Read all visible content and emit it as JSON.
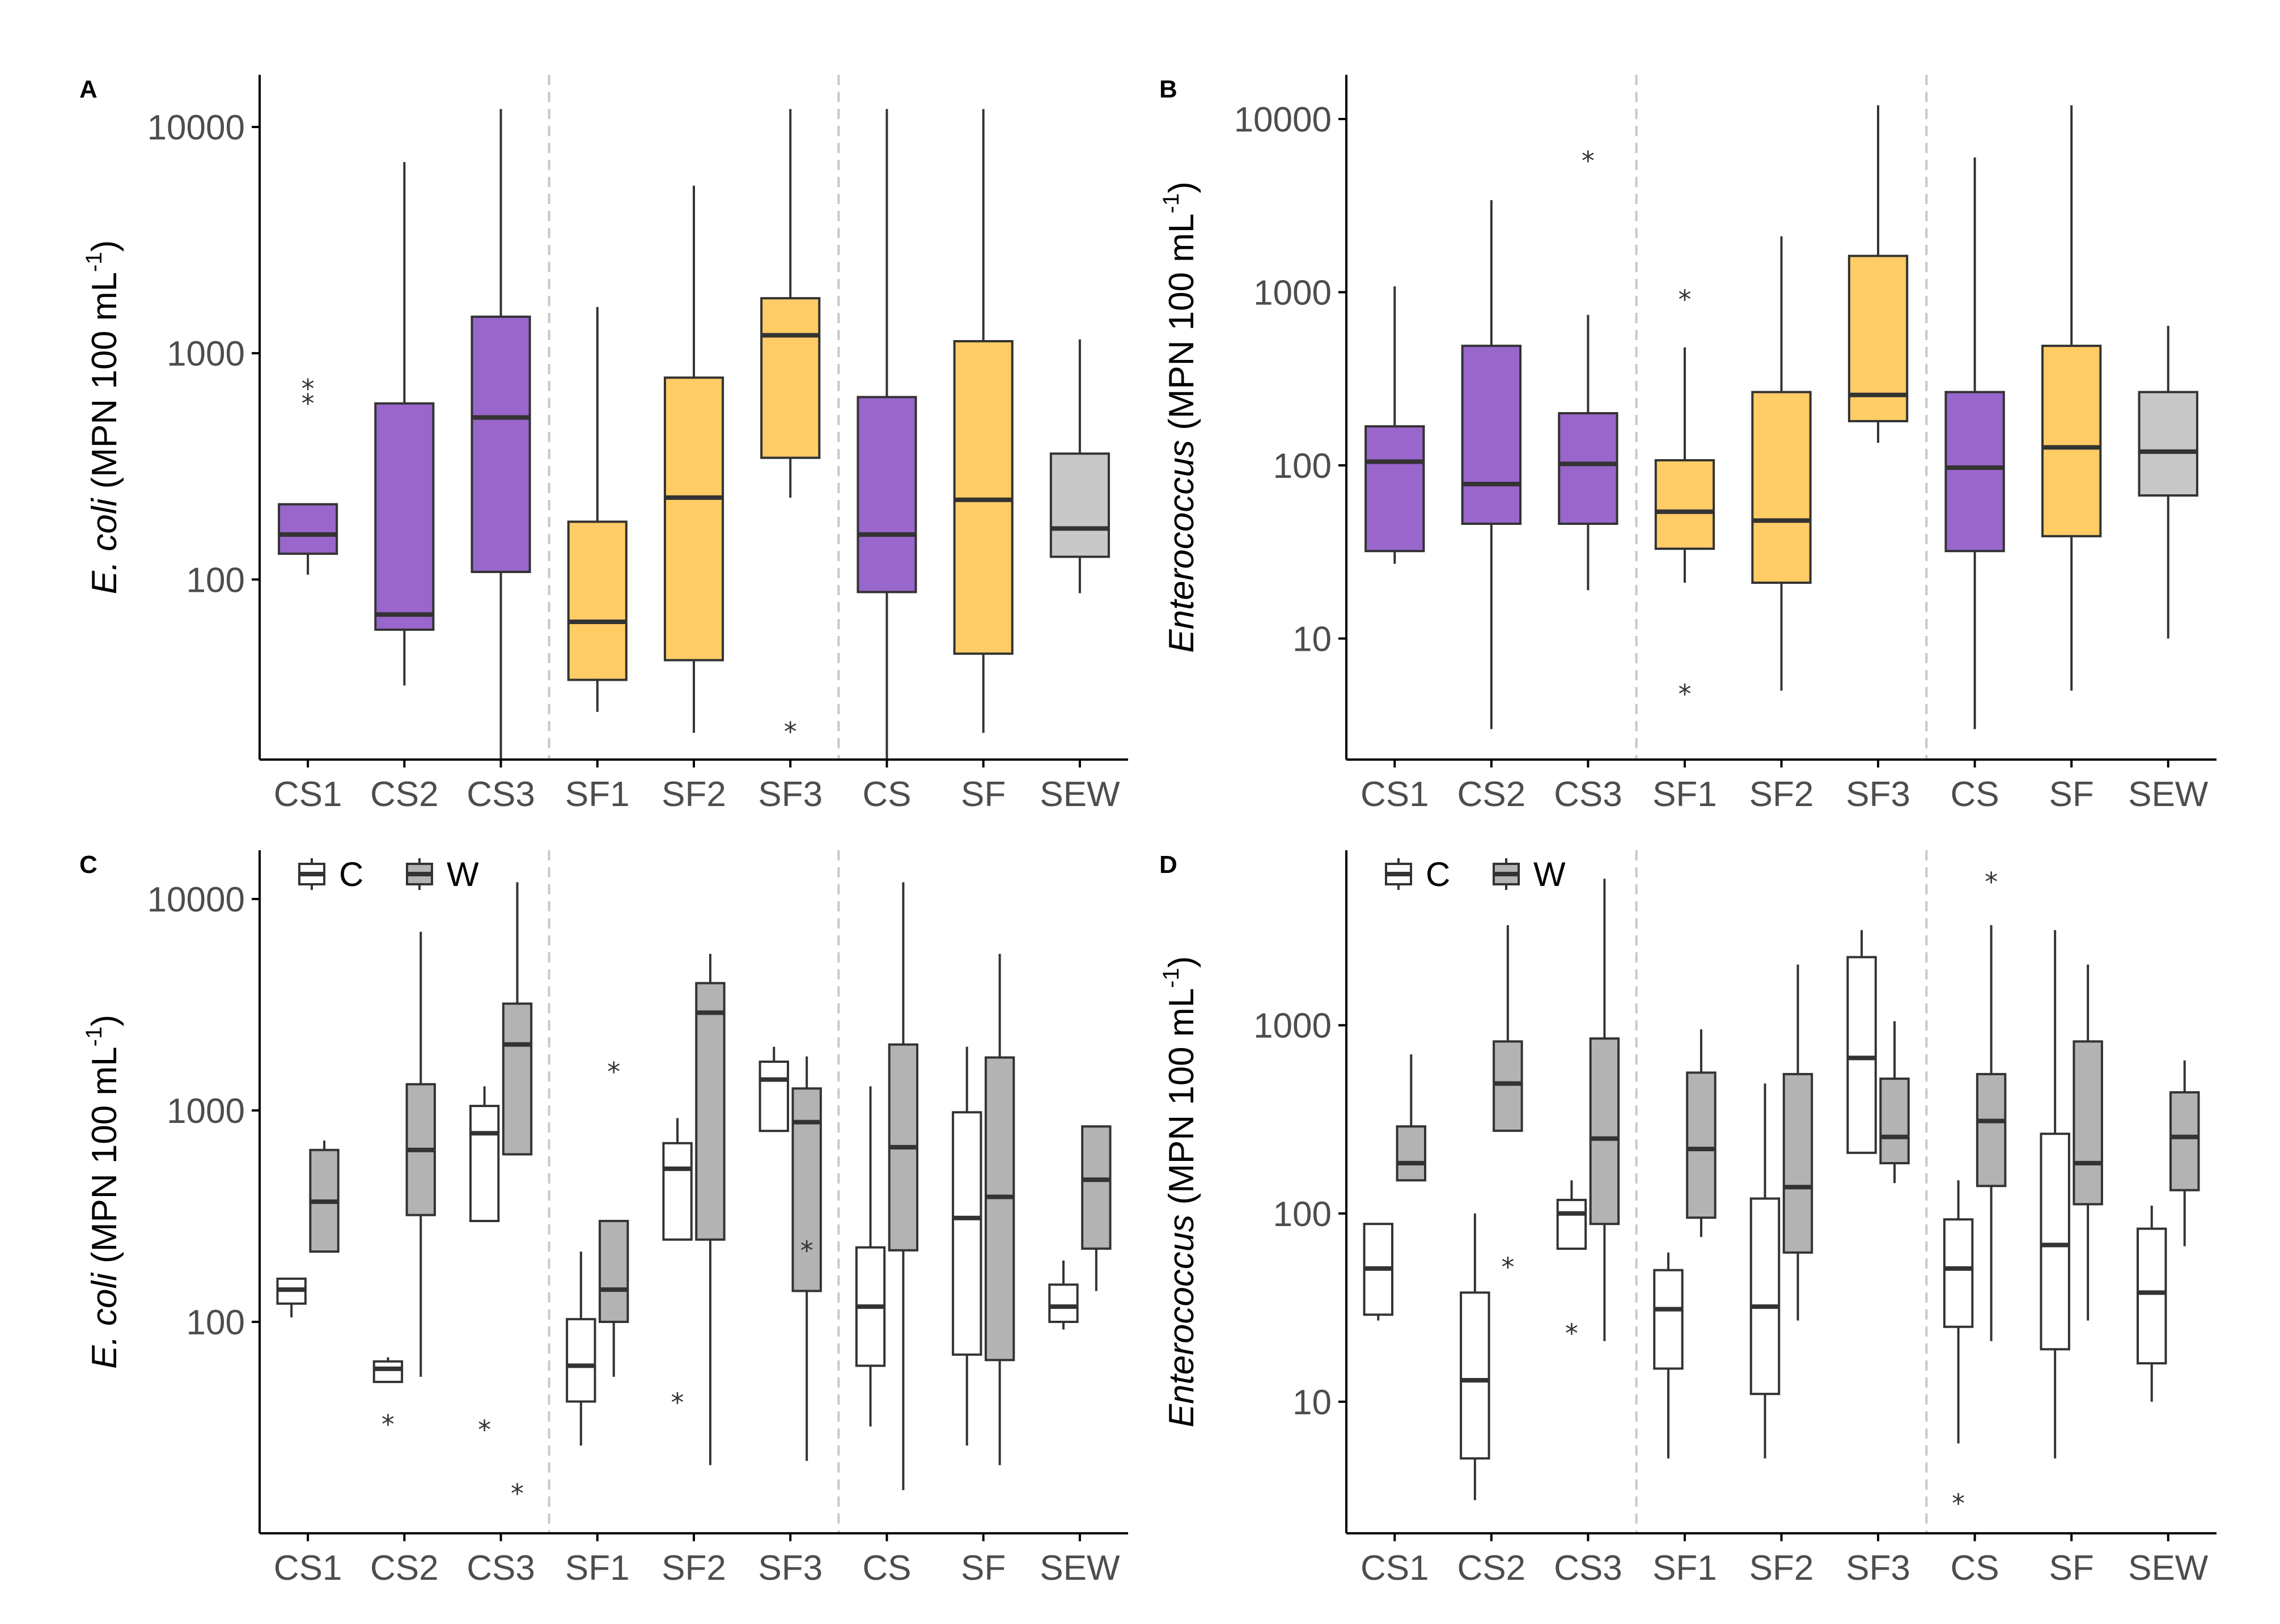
{
  "chart_data": [
    {
      "panel": "A",
      "type": "box",
      "ylabel_italic": "E. coli",
      "ylabel_unit": "(MPN 100 mL",
      "ylabel_exp": "-1",
      "ylabel_close": ")",
      "yscale": "log",
      "ylim": [
        16,
        17000
      ],
      "yticks": [
        100,
        1000,
        10000
      ],
      "ytick_labels": [
        "100",
        "1000",
        "10000"
      ],
      "categories": [
        "CS1",
        "CS2",
        "CS3",
        "SF1",
        "SF2",
        "SF3",
        "CS",
        "SF",
        "SEW"
      ],
      "separators_after": [
        2,
        5
      ],
      "boxes": [
        {
          "cat": 0,
          "min": 105,
          "q1": 130,
          "median": 158,
          "q3": 215,
          "max": 215,
          "fill": "purple",
          "outliers": [
            620,
            720
          ]
        },
        {
          "cat": 1,
          "min": 34,
          "q1": 60,
          "median": 70,
          "q3": 600,
          "max": 7000,
          "fill": "purple",
          "outliers": []
        },
        {
          "cat": 2,
          "min": 16,
          "q1": 108,
          "median": 520,
          "q3": 1450,
          "max": 12000,
          "fill": "purple",
          "outliers": []
        },
        {
          "cat": 3,
          "min": 26,
          "q1": 36,
          "median": 65,
          "q3": 180,
          "max": 1600,
          "fill": "orange",
          "outliers": []
        },
        {
          "cat": 4,
          "min": 21,
          "q1": 44,
          "median": 230,
          "q3": 780,
          "max": 5500,
          "fill": "orange",
          "outliers": []
        },
        {
          "cat": 5,
          "min": 230,
          "q1": 345,
          "median": 1200,
          "q3": 1750,
          "max": 12000,
          "fill": "orange",
          "outliers": [
            22
          ]
        },
        {
          "cat": 6,
          "min": 16,
          "q1": 88,
          "median": 158,
          "q3": 640,
          "max": 12000,
          "fill": "purple",
          "outliers": []
        },
        {
          "cat": 7,
          "min": 21,
          "q1": 47,
          "median": 225,
          "q3": 1130,
          "max": 12000,
          "fill": "orange",
          "outliers": []
        },
        {
          "cat": 8,
          "min": 87,
          "q1": 126,
          "median": 168,
          "q3": 360,
          "max": 1150,
          "fill": "grey",
          "outliers": []
        }
      ]
    },
    {
      "panel": "B",
      "type": "box",
      "ylabel_italic": "Enterococcus",
      "ylabel_unit": "(MPN 100 mL",
      "ylabel_exp": "-1",
      "ylabel_close": ")",
      "yscale": "log",
      "ylim": [
        2,
        18000
      ],
      "yticks": [
        10,
        100,
        1000,
        10000
      ],
      "ytick_labels": [
        "10",
        "100",
        "1000",
        "10000"
      ],
      "categories": [
        "CS1",
        "CS2",
        "CS3",
        "SF1",
        "SF2",
        "SF3",
        "CS",
        "SF",
        "SEW"
      ],
      "separators_after": [
        2,
        5
      ],
      "boxes": [
        {
          "cat": 0,
          "min": 27,
          "q1": 32,
          "median": 105,
          "q3": 168,
          "max": 1080,
          "fill": "purple",
          "outliers": []
        },
        {
          "cat": 1,
          "min": 3,
          "q1": 46,
          "median": 78,
          "q3": 490,
          "max": 3400,
          "fill": "purple",
          "outliers": []
        },
        {
          "cat": 2,
          "min": 19,
          "q1": 46,
          "median": 102,
          "q3": 200,
          "max": 740,
          "fill": "purple",
          "outliers": [
            6000
          ]
        },
        {
          "cat": 3,
          "min": 21,
          "q1": 33,
          "median": 54,
          "q3": 107,
          "max": 480,
          "fill": "orange",
          "outliers": [
            950,
            5
          ]
        },
        {
          "cat": 4,
          "min": 5,
          "q1": 21,
          "median": 48,
          "q3": 265,
          "max": 2100,
          "fill": "orange",
          "outliers": []
        },
        {
          "cat": 5,
          "min": 135,
          "q1": 180,
          "median": 255,
          "q3": 1620,
          "max": 12000,
          "fill": "orange",
          "outliers": []
        },
        {
          "cat": 6,
          "min": 3,
          "q1": 32,
          "median": 97,
          "q3": 265,
          "max": 6000,
          "fill": "purple",
          "outliers": []
        },
        {
          "cat": 7,
          "min": 5,
          "q1": 39,
          "median": 127,
          "q3": 490,
          "max": 12000,
          "fill": "orange",
          "outliers": []
        },
        {
          "cat": 8,
          "min": 10,
          "q1": 67,
          "median": 120,
          "q3": 265,
          "max": 640,
          "fill": "grey",
          "outliers": []
        }
      ]
    },
    {
      "panel": "C",
      "type": "box",
      "ylabel_italic": "E. coli",
      "ylabel_unit": "(MPN 100 mL",
      "ylabel_exp": "-1",
      "ylabel_close": ")",
      "yscale": "log",
      "ylim": [
        10,
        17000
      ],
      "yticks": [
        100,
        1000,
        10000
      ],
      "ytick_labels": [
        "100",
        "1000",
        "10000"
      ],
      "categories": [
        "CS1",
        "CS2",
        "CS3",
        "SF1",
        "SF2",
        "SF3",
        "CS",
        "SF",
        "SEW"
      ],
      "separators_after": [
        2,
        5
      ],
      "legend": [
        {
          "label": "C",
          "fill": "white"
        },
        {
          "label": "W",
          "fill": "grey"
        }
      ],
      "boxes": [
        {
          "cat": 0,
          "group": "C",
          "min": 105,
          "q1": 122,
          "median": 142,
          "q3": 160,
          "max": 160,
          "fill": "white",
          "outliers": []
        },
        {
          "cat": 0,
          "group": "W",
          "min": 215,
          "q1": 215,
          "median": 370,
          "q3": 650,
          "max": 720,
          "fill": "grey",
          "outliers": []
        },
        {
          "cat": 1,
          "group": "C",
          "min": 52,
          "q1": 52,
          "median": 60,
          "q3": 65,
          "max": 68,
          "fill": "white",
          "outliers": [
            34
          ]
        },
        {
          "cat": 1,
          "group": "W",
          "min": 55,
          "q1": 320,
          "median": 650,
          "q3": 1330,
          "max": 7000,
          "fill": "grey",
          "outliers": []
        },
        {
          "cat": 2,
          "group": "C",
          "min": 300,
          "q1": 300,
          "median": 780,
          "q3": 1050,
          "max": 1300,
          "fill": "white",
          "outliers": [
            32
          ]
        },
        {
          "cat": 2,
          "group": "W",
          "min": 620,
          "q1": 620,
          "median": 2050,
          "q3": 3200,
          "max": 12000,
          "fill": "grey",
          "outliers": [
            16
          ]
        },
        {
          "cat": 3,
          "group": "C",
          "min": 26,
          "q1": 42,
          "median": 62,
          "q3": 103,
          "max": 215,
          "fill": "white",
          "outliers": []
        },
        {
          "cat": 3,
          "group": "W",
          "min": 55,
          "q1": 100,
          "median": 142,
          "q3": 300,
          "max": 300,
          "fill": "grey",
          "outliers": [
            1580
          ]
        },
        {
          "cat": 4,
          "group": "C",
          "min": 245,
          "q1": 245,
          "median": 530,
          "q3": 700,
          "max": 920,
          "fill": "white",
          "outliers": [
            43
          ]
        },
        {
          "cat": 4,
          "group": "W",
          "min": 21,
          "q1": 245,
          "median": 2900,
          "q3": 4000,
          "max": 5500,
          "fill": "grey",
          "outliers": []
        },
        {
          "cat": 5,
          "group": "C",
          "min": 800,
          "q1": 800,
          "median": 1400,
          "q3": 1700,
          "max": 2000,
          "fill": "white",
          "outliers": []
        },
        {
          "cat": 5,
          "group": "W",
          "min": 22,
          "q1": 140,
          "median": 880,
          "q3": 1270,
          "max": 1800,
          "fill": "grey",
          "outliers": [
            225
          ]
        },
        {
          "cat": 6,
          "group": "C",
          "min": 32,
          "q1": 62,
          "median": 118,
          "q3": 225,
          "max": 1300,
          "fill": "white",
          "outliers": []
        },
        {
          "cat": 6,
          "group": "W",
          "min": 16,
          "q1": 218,
          "median": 670,
          "q3": 2050,
          "max": 12000,
          "fill": "grey",
          "outliers": []
        },
        {
          "cat": 7,
          "group": "C",
          "min": 26,
          "q1": 70,
          "median": 310,
          "q3": 980,
          "max": 2000,
          "fill": "white",
          "outliers": []
        },
        {
          "cat": 7,
          "group": "W",
          "min": 21,
          "q1": 66,
          "median": 390,
          "q3": 1780,
          "max": 5500,
          "fill": "grey",
          "outliers": []
        },
        {
          "cat": 8,
          "group": "C",
          "min": 92,
          "q1": 100,
          "median": 118,
          "q3": 150,
          "max": 195,
          "fill": "white",
          "outliers": []
        },
        {
          "cat": 8,
          "group": "W",
          "min": 140,
          "q1": 222,
          "median": 470,
          "q3": 840,
          "max": 840,
          "fill": "grey",
          "outliers": []
        }
      ]
    },
    {
      "panel": "D",
      "type": "box",
      "ylabel_italic": "Enterococcus",
      "ylabel_unit": "(MPN 100 mL",
      "ylabel_exp": "-1",
      "ylabel_close": ")",
      "yscale": "log",
      "ylim": [
        2,
        8500
      ],
      "yticks": [
        10,
        100,
        1000
      ],
      "ytick_labels": [
        "10",
        "100",
        "1000"
      ],
      "categories": [
        "CS1",
        "CS2",
        "CS3",
        "SF1",
        "SF2",
        "SF3",
        "CS",
        "SF",
        "SEW"
      ],
      "separators_after": [
        2,
        5
      ],
      "legend": [
        {
          "label": "C",
          "fill": "white"
        },
        {
          "label": "W",
          "fill": "grey"
        }
      ],
      "boxes": [
        {
          "cat": 0,
          "group": "C",
          "min": 27,
          "q1": 29,
          "median": 51,
          "q3": 88,
          "max": 88,
          "fill": "white",
          "outliers": []
        },
        {
          "cat": 0,
          "group": "W",
          "min": 150,
          "q1": 150,
          "median": 185,
          "q3": 290,
          "max": 700,
          "fill": "grey",
          "outliers": []
        },
        {
          "cat": 1,
          "group": "C",
          "min": 3,
          "q1": 5,
          "median": 13,
          "q3": 38,
          "max": 100,
          "fill": "white",
          "outliers": []
        },
        {
          "cat": 1,
          "group": "W",
          "min": 275,
          "q1": 275,
          "median": 490,
          "q3": 820,
          "max": 3400,
          "fill": "grey",
          "outliers": [
            54
          ]
        },
        {
          "cat": 2,
          "group": "C",
          "min": 65,
          "q1": 65,
          "median": 100,
          "q3": 118,
          "max": 150,
          "fill": "white",
          "outliers": [
            24
          ]
        },
        {
          "cat": 2,
          "group": "W",
          "min": 21,
          "q1": 88,
          "median": 250,
          "q3": 850,
          "max": 6000,
          "fill": "grey",
          "outliers": []
        },
        {
          "cat": 3,
          "group": "C",
          "min": 5,
          "q1": 15,
          "median": 31,
          "q3": 50,
          "max": 62,
          "fill": "white",
          "outliers": []
        },
        {
          "cat": 3,
          "group": "W",
          "min": 75,
          "q1": 95,
          "median": 220,
          "q3": 560,
          "max": 950,
          "fill": "grey",
          "outliers": []
        },
        {
          "cat": 4,
          "group": "C",
          "min": 5,
          "q1": 11,
          "median": 32,
          "q3": 120,
          "max": 490,
          "fill": "white",
          "outliers": []
        },
        {
          "cat": 4,
          "group": "W",
          "min": 27,
          "q1": 62,
          "median": 138,
          "q3": 550,
          "max": 2100,
          "fill": "grey",
          "outliers": []
        },
        {
          "cat": 5,
          "group": "C",
          "min": 210,
          "q1": 210,
          "median": 670,
          "q3": 2300,
          "max": 3200,
          "fill": "white",
          "outliers": []
        },
        {
          "cat": 5,
          "group": "W",
          "min": 145,
          "q1": 185,
          "median": 255,
          "q3": 520,
          "max": 1050,
          "fill": "grey",
          "outliers": []
        },
        {
          "cat": 6,
          "group": "C",
          "min": 6,
          "q1": 25,
          "median": 51,
          "q3": 93,
          "max": 150,
          "fill": "white",
          "outliers": [
            3
          ]
        },
        {
          "cat": 6,
          "group": "W",
          "min": 21,
          "q1": 140,
          "median": 310,
          "q3": 550,
          "max": 3400,
          "fill": "grey",
          "outliers": [
            6000
          ]
        },
        {
          "cat": 7,
          "group": "C",
          "min": 5,
          "q1": 19,
          "median": 68,
          "q3": 265,
          "max": 3200,
          "fill": "white",
          "outliers": []
        },
        {
          "cat": 7,
          "group": "W",
          "min": 27,
          "q1": 112,
          "median": 185,
          "q3": 820,
          "max": 2100,
          "fill": "grey",
          "outliers": []
        },
        {
          "cat": 8,
          "group": "C",
          "min": 10,
          "q1": 16,
          "median": 38,
          "q3": 83,
          "max": 110,
          "fill": "white",
          "outliers": []
        },
        {
          "cat": 8,
          "group": "W",
          "min": 67,
          "q1": 133,
          "median": 255,
          "q3": 440,
          "max": 650,
          "fill": "grey",
          "outliers": []
        }
      ]
    }
  ],
  "colors": {
    "purple": "#9966cc",
    "orange": "#ffcc66",
    "grey": "#c8c8c8",
    "grey_paired": "#b3b3b3",
    "white": "#ffffff"
  },
  "outlier_glyph": "*"
}
